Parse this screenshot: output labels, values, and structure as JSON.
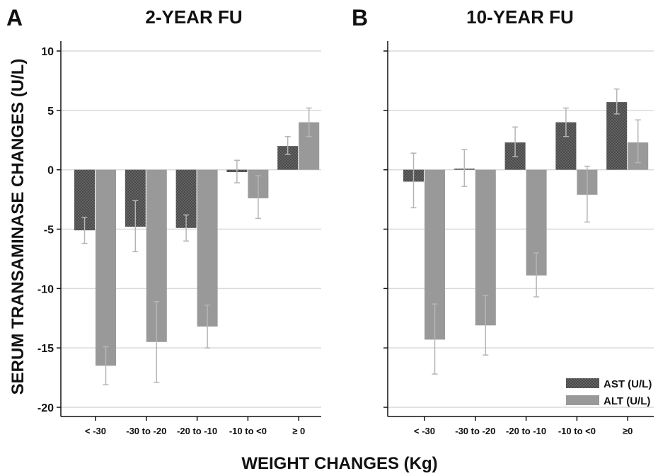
{
  "chart_data": {
    "type": "bar",
    "ylabel": "SERUM TRANSAMINASE CHANGES (U/L)",
    "xlabel": "WEIGHT CHANGES (Kg)",
    "ylim": [
      -21,
      10.8
    ],
    "yticks": [
      10,
      5,
      0,
      -5,
      -10,
      -15,
      -20
    ],
    "grid": true,
    "legend_position": "bottom-right",
    "colors": {
      "AST": "#555555",
      "ALT": "#999999",
      "grid": "#d9d9d9",
      "errorbar": "#b5b5b5"
    },
    "series_names": [
      "AST (U/L)",
      "ALT (U/L)"
    ],
    "panels": [
      {
        "letter": "A",
        "title": "2-YEAR FU",
        "categories": [
          "< -30",
          "-30 to -20",
          "-20 to -10",
          "-10 to <0",
          "≥ 0"
        ],
        "series": [
          {
            "name": "AST (U/L)",
            "key": "AST",
            "values": [
              -5.1,
              -4.8,
              -4.9,
              -0.2,
              2.0
            ],
            "err_low": [
              -6.2,
              -6.9,
              -6.0,
              -1.1,
              1.3
            ],
            "err_high": [
              -4.0,
              -2.6,
              -3.8,
              0.8,
              2.8
            ]
          },
          {
            "name": "ALT (U/L)",
            "key": "ALT",
            "values": [
              -16.5,
              -14.5,
              -13.2,
              -2.4,
              4.0
            ],
            "err_low": [
              -18.1,
              -17.9,
              -15.0,
              -4.1,
              2.8
            ],
            "err_high": [
              -14.9,
              -11.1,
              -11.4,
              -0.5,
              5.2
            ]
          }
        ]
      },
      {
        "letter": "B",
        "title": "10-YEAR FU",
        "categories": [
          "< -30",
          "-30 to -20",
          "-20 to -10",
          "-10 to <0",
          "≥0"
        ],
        "series": [
          {
            "name": "AST (U/L)",
            "key": "AST",
            "values": [
              -1.0,
              0.1,
              2.3,
              4.0,
              5.7
            ],
            "err_low": [
              -3.2,
              -1.4,
              1.1,
              2.8,
              4.7
            ],
            "err_high": [
              1.4,
              1.7,
              3.6,
              5.2,
              6.8
            ]
          },
          {
            "name": "ALT (U/L)",
            "key": "ALT",
            "values": [
              -14.3,
              -13.1,
              -8.9,
              -2.1,
              2.3
            ],
            "err_low": [
              -17.2,
              -15.6,
              -10.7,
              -4.4,
              0.6
            ],
            "err_high": [
              -11.3,
              -10.6,
              -7.0,
              0.3,
              4.2
            ]
          }
        ]
      }
    ]
  }
}
